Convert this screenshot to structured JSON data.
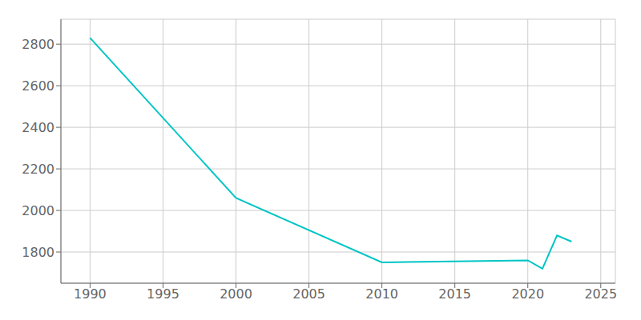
{
  "chart_data": {
    "type": "line",
    "x": [
      1990,
      2000,
      2010,
      2020,
      2021,
      2022,
      2023
    ],
    "values": [
      2830,
      2060,
      1750,
      1760,
      1720,
      1880,
      1850
    ],
    "color": "#00C5C5",
    "xlim": [
      1988,
      2026
    ],
    "ylim": [
      1650,
      2920
    ],
    "xticks": [
      1990,
      1995,
      2000,
      2005,
      2010,
      2015,
      2020,
      2025
    ],
    "yticks": [
      1800,
      2000,
      2200,
      2400,
      2600,
      2800
    ],
    "grid": true
  }
}
